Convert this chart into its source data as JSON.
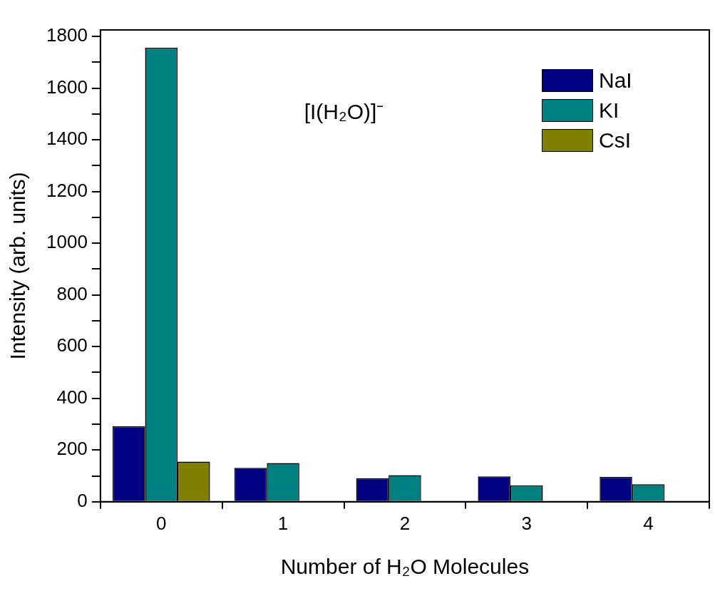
{
  "chart_data": {
    "type": "bar",
    "xlabel": "Number of H₂O Molecules",
    "ylabel": "Intensity (arb. units)",
    "categories": [
      "0",
      "1",
      "2",
      "3",
      "4"
    ],
    "series": [
      {
        "name": "NaI",
        "color": "#000080",
        "values": [
          292,
          131,
          91,
          98,
          96
        ]
      },
      {
        "name": "KI",
        "color": "#008080",
        "values": [
          1756,
          150,
          103,
          63,
          68
        ]
      },
      {
        "name": "CsI",
        "color": "#808000",
        "values": [
          155,
          null,
          null,
          null,
          null
        ]
      }
    ],
    "ylim": [
      0,
      1825
    ],
    "yticks": [
      0,
      {
        "value": 100,
        "label": null
      },
      200,
      {
        "value": 300,
        "label": null
      },
      400,
      {
        "value": 500,
        "label": null
      },
      600,
      {
        "value": 700,
        "label": null
      },
      800,
      {
        "value": 900,
        "label": null
      },
      1000,
      {
        "value": 1100,
        "label": null
      },
      1200,
      {
        "value": 1300,
        "label": null
      },
      1400,
      {
        "value": 1500,
        "label": null
      },
      1600,
      {
        "value": 1700,
        "label": null
      },
      1800
    ],
    "annotations": [
      "[I(H₂O)]⁻"
    ],
    "legend": "top right",
    "grid": false
  }
}
